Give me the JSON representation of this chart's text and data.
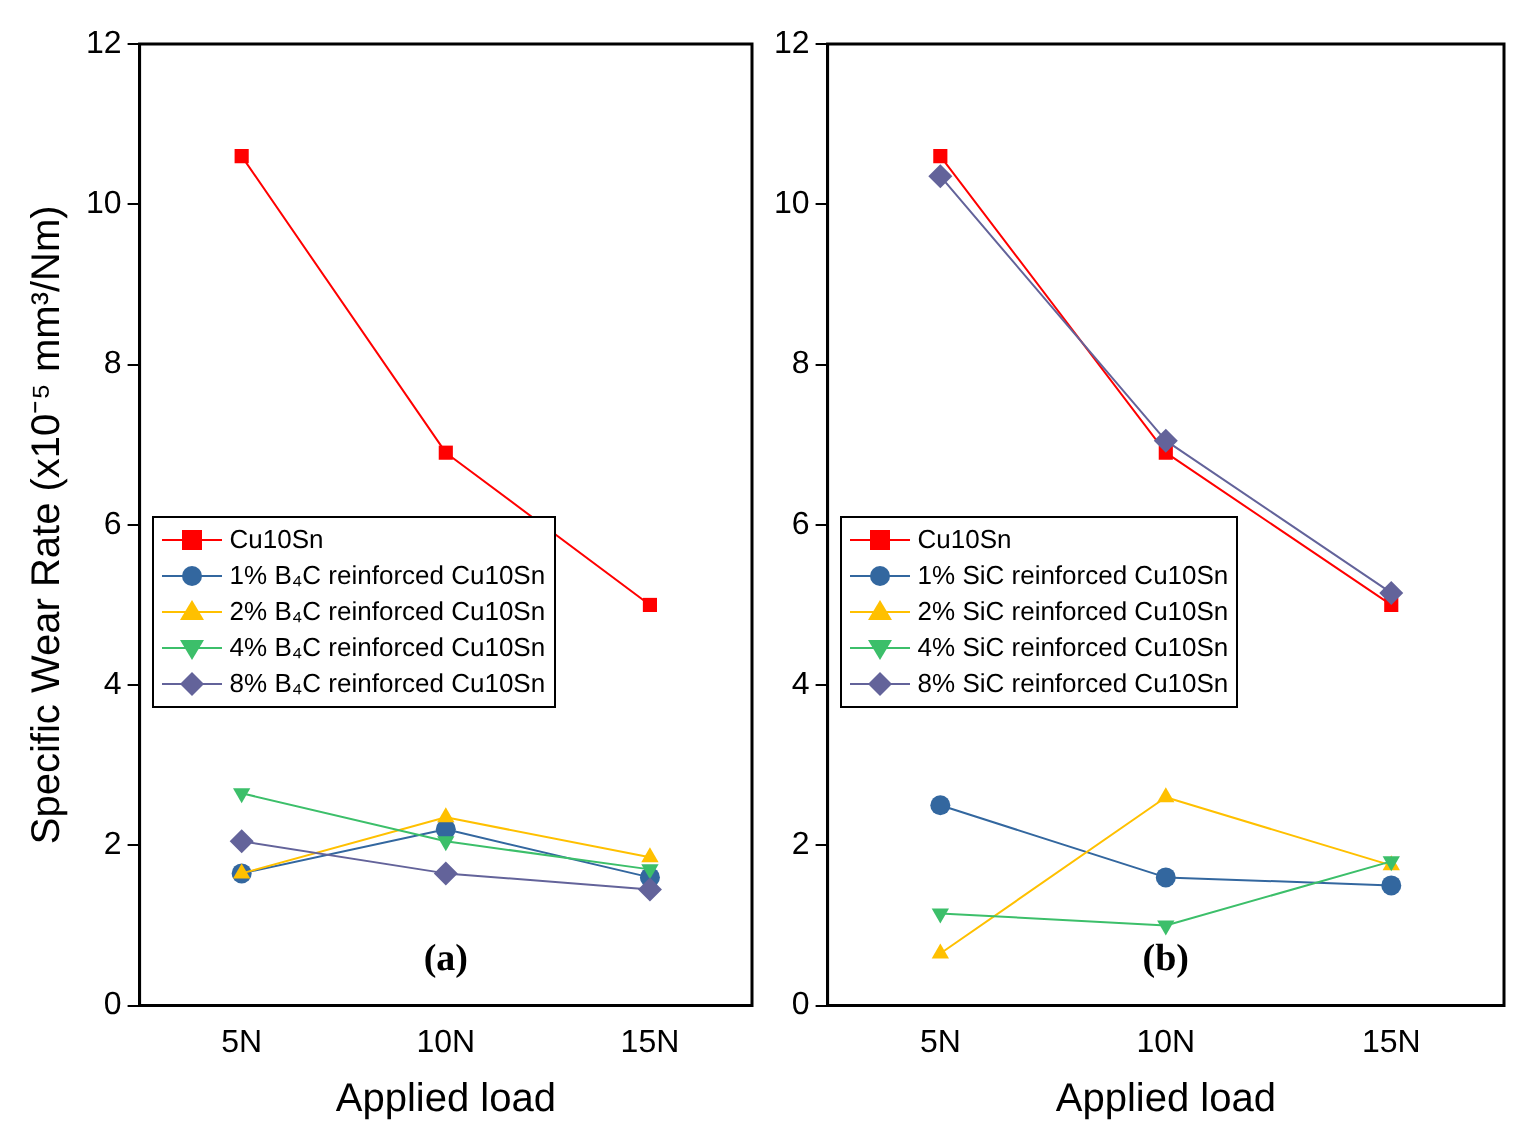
{
  "chart_data": [
    {
      "type": "line",
      "categories": [
        "5N",
        "10N",
        "15N"
      ],
      "xlabel": "Applied load",
      "ylabel": "Specific Wear Rate (x10⁻⁵ mm³/Nm)",
      "ylim": [
        0,
        12
      ],
      "yticks": [
        0,
        2,
        4,
        6,
        8,
        10,
        12
      ],
      "grid": false,
      "legend": "left",
      "annotations": [
        "(a)"
      ],
      "series": [
        {
          "name": "Cu10Sn",
          "color": "#ff0000",
          "marker": "square",
          "values": [
            10.6,
            6.9,
            5.0
          ]
        },
        {
          "name": "1% B₄C reinforced Cu10Sn",
          "color": "#33679f",
          "marker": "circle",
          "values": [
            1.65,
            2.2,
            1.6
          ]
        },
        {
          "name": "2% B₄C reinforced Cu10Sn",
          "color": "#ffc000",
          "marker": "triangle",
          "values": [
            1.65,
            2.35,
            1.85
          ]
        },
        {
          "name": "4% B₄C reinforced Cu10Sn",
          "color": "#3cbf6a",
          "marker": "triangle-down",
          "values": [
            2.65,
            2.05,
            1.7
          ]
        },
        {
          "name": "8% B₄C reinforced Cu10Sn",
          "color": "#63639a",
          "marker": "diamond",
          "values": [
            2.05,
            1.65,
            1.45
          ]
        }
      ]
    },
    {
      "type": "line",
      "categories": [
        "5N",
        "10N",
        "15N"
      ],
      "xlabel": "Applied load",
      "ylim": [
        0,
        12
      ],
      "yticks": [
        0,
        2,
        4,
        6,
        8,
        10,
        12
      ],
      "grid": false,
      "legend": "left",
      "annotations": [
        "(b)"
      ],
      "series": [
        {
          "name": "Cu10Sn",
          "color": "#ff0000",
          "marker": "square",
          "values": [
            10.6,
            6.9,
            5.0
          ]
        },
        {
          "name": "1% SiC reinforced Cu10Sn",
          "color": "#33679f",
          "marker": "circle",
          "values": [
            2.5,
            1.6,
            1.5
          ]
        },
        {
          "name": "2% SiC reinforced Cu10Sn",
          "color": "#ffc000",
          "marker": "triangle",
          "values": [
            0.65,
            2.6,
            1.75
          ]
        },
        {
          "name": "4% SiC reinforced Cu10Sn",
          "color": "#3cbf6a",
          "marker": "triangle-down",
          "values": [
            1.15,
            1.0,
            1.8
          ]
        },
        {
          "name": "8% SiC reinforced Cu10Sn",
          "color": "#63639a",
          "marker": "diamond",
          "values": [
            10.35,
            7.05,
            5.15
          ]
        }
      ]
    }
  ]
}
